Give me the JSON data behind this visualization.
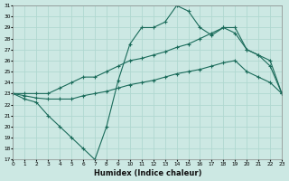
{
  "xlabel": "Humidex (Indice chaleur)",
  "bg_color": "#cce8e3",
  "line_color": "#1a6b5a",
  "grid_color": "#b0d8d0",
  "xlim": [
    0,
    23
  ],
  "ylim": [
    17,
    31
  ],
  "xticks": [
    0,
    1,
    2,
    3,
    4,
    5,
    6,
    7,
    8,
    9,
    10,
    11,
    12,
    13,
    14,
    15,
    16,
    17,
    18,
    19,
    20,
    21,
    22,
    23
  ],
  "yticks": [
    17,
    18,
    19,
    20,
    21,
    22,
    23,
    24,
    25,
    26,
    27,
    28,
    29,
    30,
    31
  ],
  "line1_x": [
    0,
    1,
    2,
    3,
    4,
    5,
    6,
    7,
    8,
    9,
    10,
    11,
    12,
    13,
    14,
    15,
    16,
    17,
    18,
    19,
    20,
    21,
    22,
    23
  ],
  "line1_y": [
    23.0,
    22.5,
    22.2,
    21.0,
    20.0,
    19.0,
    18.0,
    17.0,
    20.0,
    24.2,
    27.5,
    29.0,
    29.0,
    29.5,
    31.0,
    30.5,
    29.0,
    28.3,
    29.0,
    28.5,
    27.0,
    26.5,
    25.5,
    23.0
  ],
  "line2_x": [
    0,
    1,
    2,
    3,
    4,
    5,
    6,
    7,
    8,
    9,
    10,
    11,
    12,
    13,
    14,
    15,
    16,
    17,
    18,
    19,
    20,
    21,
    22,
    23
  ],
  "line2_y": [
    23.0,
    23.0,
    23.0,
    23.0,
    23.5,
    24.0,
    24.5,
    24.5,
    25.0,
    25.5,
    26.0,
    26.2,
    26.5,
    26.8,
    27.2,
    27.5,
    28.0,
    28.5,
    29.0,
    29.0,
    27.0,
    26.5,
    26.0,
    23.0
  ],
  "line3_x": [
    0,
    1,
    2,
    3,
    4,
    5,
    6,
    7,
    8,
    9,
    10,
    11,
    12,
    13,
    14,
    15,
    16,
    17,
    18,
    19,
    20,
    21,
    22,
    23
  ],
  "line3_y": [
    23.0,
    22.8,
    22.6,
    22.5,
    22.5,
    22.5,
    22.8,
    23.0,
    23.2,
    23.5,
    23.8,
    24.0,
    24.2,
    24.5,
    24.8,
    25.0,
    25.2,
    25.5,
    25.8,
    26.0,
    25.0,
    24.5,
    24.0,
    23.0
  ]
}
